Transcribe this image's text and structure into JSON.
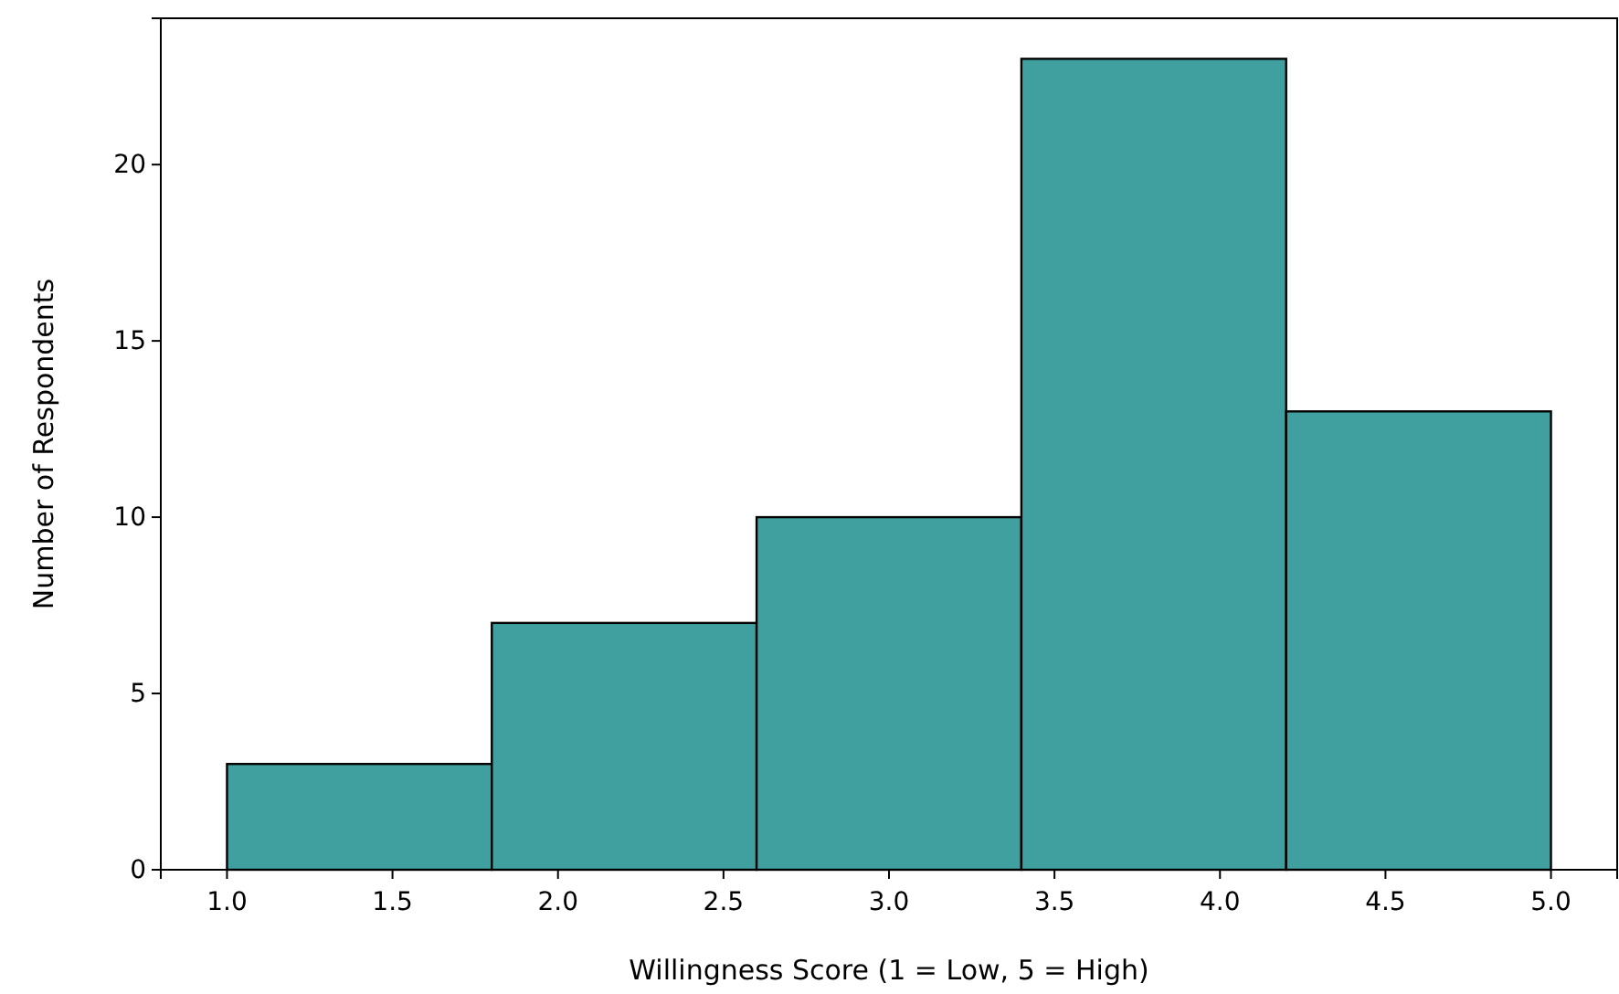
{
  "chart_data": {
    "type": "histogram",
    "xlabel": "Willingness Score (1 = Low, 5 = High)",
    "ylabel": "Number of Respondents",
    "bins": [
      1.0,
      1.8,
      2.6,
      3.4,
      4.2,
      5.0
    ],
    "values": [
      3,
      7,
      10,
      23,
      13
    ],
    "color": "#40a0a0",
    "xlim": [
      0.8,
      5.2
    ],
    "xticks": [
      {
        "value": 1,
        "label": "1.0"
      },
      {
        "value": 1.5,
        "label": "1.5"
      },
      {
        "value": 2,
        "label": "2.0"
      },
      {
        "value": 2.5,
        "label": "2.5"
      },
      {
        "value": 3,
        "label": "3.0"
      },
      {
        "value": 3.5,
        "label": "3.5"
      },
      {
        "value": 4,
        "label": "4.0"
      },
      {
        "value": 4.5,
        "label": "4.5"
      },
      {
        "value": 5,
        "label": "5.0"
      }
    ],
    "ylim": [
      0,
      24.15
    ],
    "yticks": [
      0,
      5,
      10,
      15,
      20
    ],
    "grid": false
  }
}
